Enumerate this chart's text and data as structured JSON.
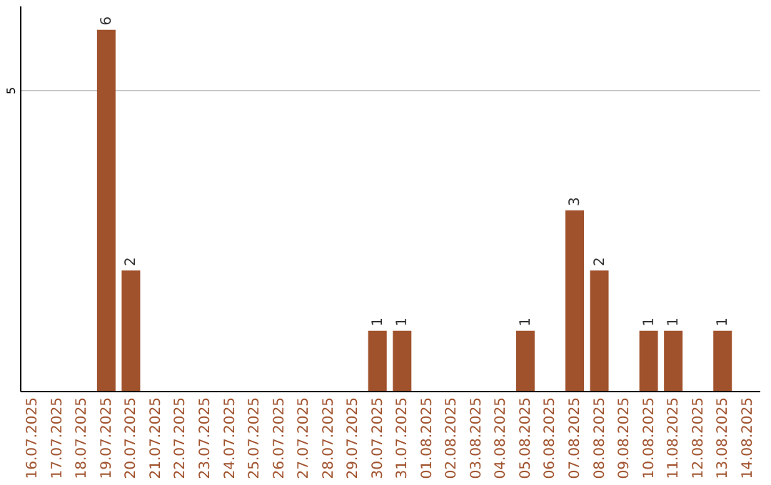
{
  "chart_data": {
    "type": "bar",
    "categories": [
      "16.07.2025",
      "17.07.2025",
      "18.07.2025",
      "19.07.2025",
      "20.07.2025",
      "21.07.2025",
      "22.07.2025",
      "23.07.2025",
      "24.07.2025",
      "25.07.2025",
      "26.07.2025",
      "27.07.2025",
      "28.07.2025",
      "29.07.2025",
      "30.07.2025",
      "31.07.2025",
      "01.08.2025",
      "02.08.2025",
      "03.08.2025",
      "04.08.2025",
      "05.08.2025",
      "06.08.2025",
      "07.08.2025",
      "08.08.2025",
      "09.08.2025",
      "10.08.2025",
      "11.08.2025",
      "12.08.2025",
      "13.08.2025",
      "14.08.2025"
    ],
    "values": [
      null,
      null,
      null,
      6,
      2,
      null,
      null,
      null,
      null,
      null,
      null,
      null,
      null,
      null,
      1,
      1,
      null,
      null,
      null,
      null,
      1,
      null,
      3,
      2,
      null,
      1,
      1,
      null,
      1,
      null
    ],
    "color": "#a0522d",
    "ylim": [
      0,
      6.4
    ],
    "yticks": [
      5
    ],
    "grid": "y",
    "data_labels": true
  }
}
